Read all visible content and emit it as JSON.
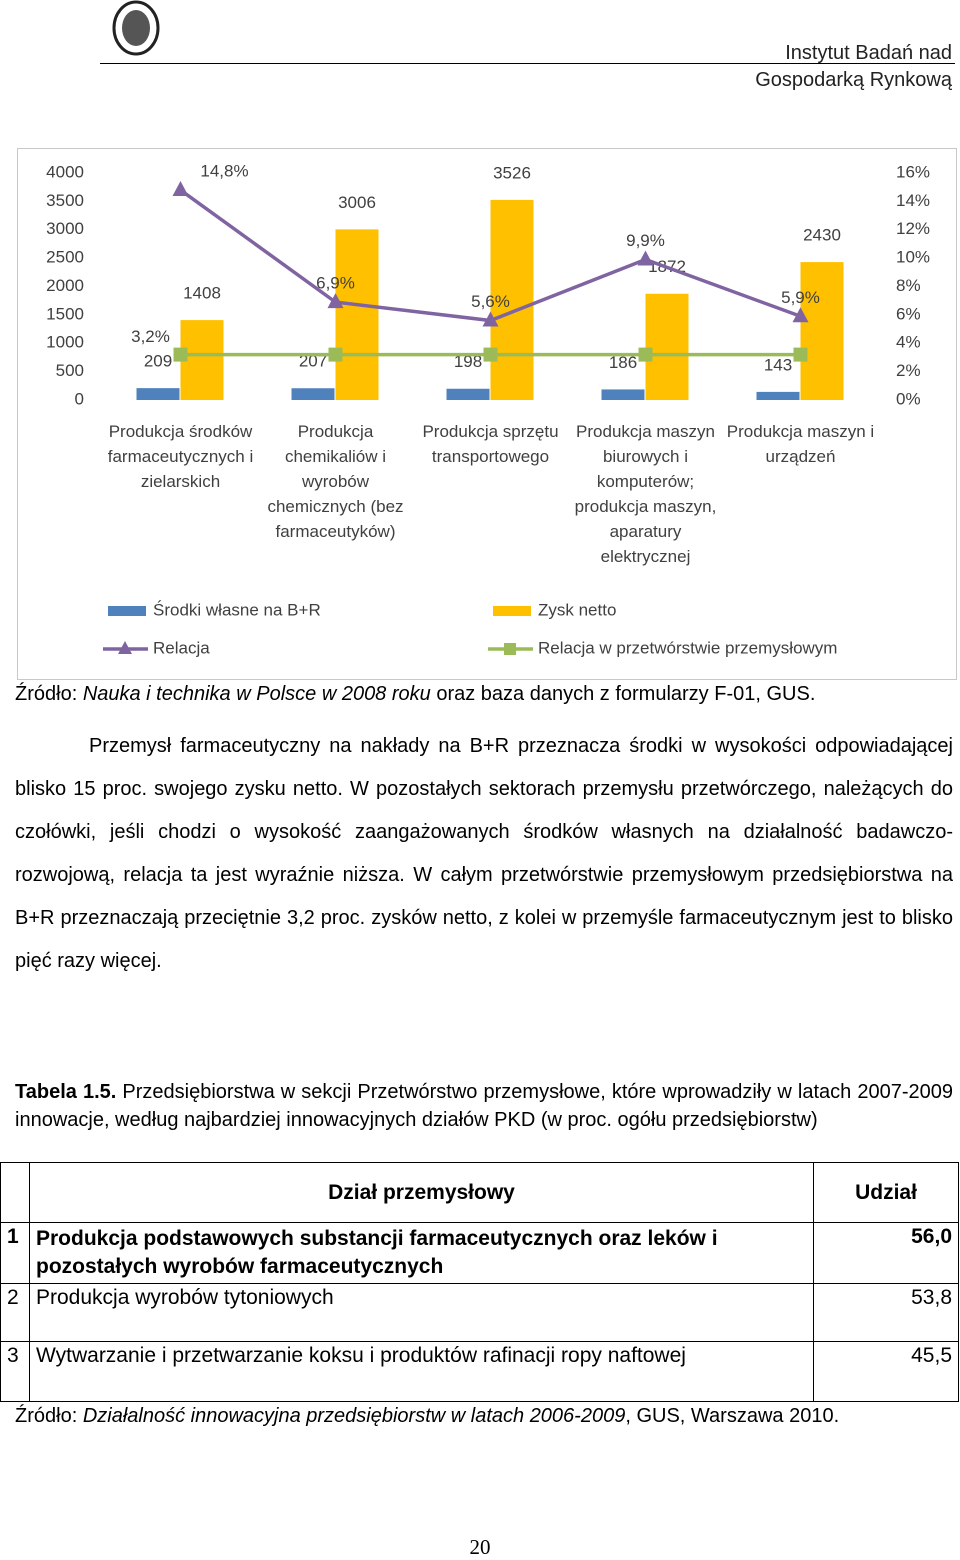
{
  "header": {
    "lines": [
      "Instytut Badań nad",
      "Gospodarką Rynkową"
    ]
  },
  "chart_data": {
    "type": "bar",
    "categories": [
      "Produkcja środków farmaceutycznych i zielarskich",
      "Produkcja chemikaliów i wyrobów chemicznych (bez farmaceutyków)",
      "Produkcja sprzętu transportowego",
      "Produkcja maszyn biurowych i komputerów; produkcja maszyn, aparatury elektrycznej",
      "Produkcja maszyn i urządzeń"
    ],
    "series": [
      {
        "name": "Środki własne na B+R",
        "type": "bar",
        "color": "#4f81bd",
        "values": [
          209,
          207,
          198,
          186,
          143
        ]
      },
      {
        "name": "Zysk netto",
        "type": "bar",
        "color": "#ffc000",
        "values": [
          1408,
          3006,
          3526,
          1872,
          2430
        ]
      },
      {
        "name": "Relacja",
        "type": "line",
        "axis": "y2",
        "color": "#8064a2",
        "marker": "triangle",
        "values": [
          14.8,
          6.9,
          5.6,
          9.9,
          5.9
        ],
        "value_labels": [
          "14,8%",
          "6,9%",
          "5,6%",
          "9,9%",
          "5,9%"
        ]
      },
      {
        "name": "Relacja w przetwórstwie przemysłowym",
        "type": "line",
        "axis": "y2",
        "color": "#9bbb59",
        "marker": "square",
        "values": [
          3.2,
          3.2,
          3.2,
          3.2,
          3.2
        ],
        "value_labels": [
          "3,2%",
          null,
          null,
          null,
          null
        ]
      }
    ],
    "ylim": [
      0,
      4000
    ],
    "yticks": [
      0,
      500,
      1000,
      1500,
      2000,
      2500,
      3000,
      3500,
      4000
    ],
    "y2lim": [
      0,
      16
    ],
    "y2ticks": [
      {
        "value": 0,
        "label": "0%"
      },
      {
        "value": 2,
        "label": "2%"
      },
      {
        "value": 4,
        "label": "4%"
      },
      {
        "value": 6,
        "label": "6%"
      },
      {
        "value": 8,
        "label": "8%"
      },
      {
        "value": 10,
        "label": "10%"
      },
      {
        "value": 12,
        "label": "12%"
      },
      {
        "value": 14,
        "label": "14%"
      },
      {
        "value": 16,
        "label": "16%"
      }
    ],
    "grid": false
  },
  "source1": {
    "prefix": "Źródło: ",
    "title": "Nauka i technika w Polsce w 2008 roku",
    "rest": " oraz baza danych z formularzy F-01, GUS."
  },
  "paragraph": "Przemysł farmaceutyczny na nakłady na B+R przeznacza środki w wysokości odpowiadającej blisko 15 proc. swojego zysku netto. W pozostałych sektorach przemysłu przetwórczego, należących do czołówki, jeśli chodzi o wysokość zaangażowanych środków własnych na działalność badawczo-rozwojową, relacja ta jest wyraźnie niższa. W całym przetwórstwie przemysłowym przedsiębiorstwa na B+R przeznaczają przeciętnie 3,2 proc. zysków netto, z kolei w przemyśle farmaceutycznym jest to blisko pięć razy więcej.",
  "table_caption": {
    "label": "Tabela 1.5.",
    "text": " Przedsiębiorstwa w sekcji Przetwórstwo przemysłowe, które wprowadziły w latach 2007-2009 innowacje, według najbardziej innowacyjnych działów PKD (w proc. ogółu przedsiębiorstw)"
  },
  "table": {
    "header": [
      "Dział przemysłowy",
      "Udział"
    ],
    "rows": [
      [
        "1",
        "Produkcja podstawowych substancji farmaceutycznych oraz leków i pozostałych wyrobów farmaceutycznych",
        "56,0"
      ],
      [
        "2",
        "Produkcja wyrobów tytoniowych",
        "53,8"
      ],
      [
        "3",
        "Wytwarzanie i przetwarzanie koksu i produktów rafinacji ropy naftowej",
        "45,5"
      ]
    ]
  },
  "source2": {
    "prefix": "Źródło: ",
    "title": "Działalność innowacyjna przedsiębiorstw w latach 2006-2009",
    "rest": ", GUS, Warszawa 2010."
  },
  "page_number": "20"
}
